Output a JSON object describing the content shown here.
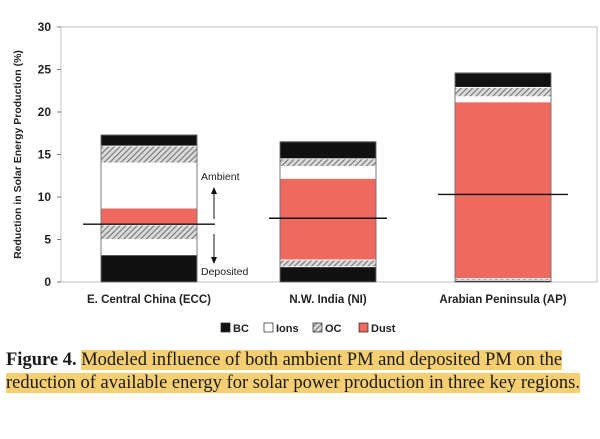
{
  "chart_data": {
    "type": "bar",
    "stacked": true,
    "ylabel": "Reduction in Solar Energy Production (%)",
    "ylim": [
      0,
      30
    ],
    "yticks": [
      0,
      5,
      10,
      15,
      20,
      25,
      30
    ],
    "grid": false,
    "legend_position": "bottom",
    "categories": [
      "E. Central China (ECC)",
      "N.W. India (NI)",
      "Arabian Peninsula (AP)"
    ],
    "segments": [
      [
        {
          "type": "BC",
          "value": 3.2
        },
        {
          "type": "Ions",
          "value": 1.8
        },
        {
          "type": "OC",
          "value": 1.7
        },
        {
          "type": "Dust",
          "value": 2.0
        },
        {
          "type": "Ions",
          "value": 5.3
        },
        {
          "type": "OC",
          "value": 2.0
        },
        {
          "type": "BC",
          "value": 1.3
        }
      ],
      [
        {
          "type": "BC",
          "value": 1.8
        },
        {
          "type": "OC",
          "value": 0.8
        },
        {
          "type": "Dust",
          "value": 9.6
        },
        {
          "type": "Ions",
          "value": 1.4
        },
        {
          "type": "OC",
          "value": 0.9
        },
        {
          "type": "BC",
          "value": 2.0
        }
      ],
      [
        {
          "type": "BC",
          "value": 0.2
        },
        {
          "type": "OC",
          "value": 0.2
        },
        {
          "type": "Dust",
          "value": 20.8
        },
        {
          "type": "Ions",
          "value": 0.6
        },
        {
          "type": "OC",
          "value": 1.1
        },
        {
          "type": "BC",
          "value": 1.7
        }
      ]
    ],
    "divider_values": [
      6.8,
      7.5,
      10.3
    ],
    "annotations": {
      "upper": "Ambient",
      "lower": "Deposited"
    },
    "legend": [
      {
        "label": "BC",
        "type": "BC"
      },
      {
        "label": "Ions",
        "type": "Ions"
      },
      {
        "label": "OC",
        "type": "OC"
      },
      {
        "label": "Dust",
        "type": "Dust"
      }
    ],
    "colors": {
      "BC": "#111111",
      "Ions": "#ffffff",
      "OC": "#9a9a9a",
      "Dust": "#ef6a5e",
      "frame": "#bfbfbf"
    }
  },
  "caption": {
    "label": "Figure 4.",
    "text": "Modeled influence of both ambient PM and deposited PM on the reduction of available energy for solar power production in three key regions."
  }
}
